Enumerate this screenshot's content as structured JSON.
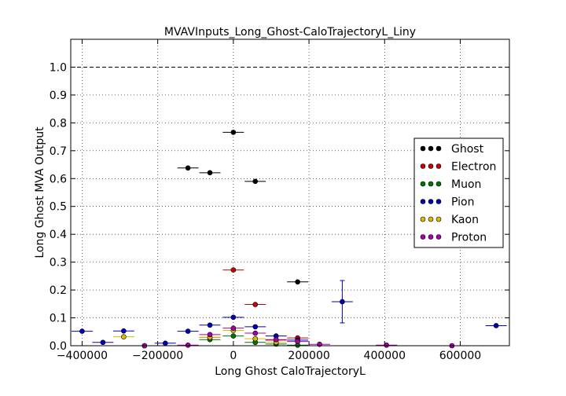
{
  "chart_data": {
    "type": "scatter",
    "title": "MVAVInputs_Long_Ghost-CaloTrajectoryL_Liny",
    "xlabel": "Long Ghost CaloTrajectoryL",
    "ylabel": "Long Ghost MVA Output",
    "xlim": [
      -430000,
      730000
    ],
    "ylim": [
      0.0,
      1.1
    ],
    "x_ticks": [
      -400000,
      -200000,
      0,
      200000,
      400000,
      600000
    ],
    "x_tick_labels": [
      "−400000",
      "−200000",
      "0",
      "200000",
      "400000",
      "600000"
    ],
    "y_ticks": [
      0.0,
      0.1,
      0.2,
      0.3,
      0.4,
      0.5,
      0.6,
      0.7,
      0.8,
      0.9,
      1.0
    ],
    "y_tick_labels": [
      "0.0",
      "0.1",
      "0.2",
      "0.3",
      "0.4",
      "0.5",
      "0.6",
      "0.7",
      "0.8",
      "0.9",
      "1.0"
    ],
    "grid": true,
    "reference_line_y": 1.0,
    "legend_position": "center-right",
    "series": [
      {
        "name": "Ghost",
        "color": "#000000",
        "points": [
          {
            "x": -120000,
            "y": 0.638,
            "xerr": 28000,
            "yerr": 0.003
          },
          {
            "x": -62000,
            "y": 0.621,
            "xerr": 28000,
            "yerr": 0.003
          },
          {
            "x": 0,
            "y": 0.766,
            "xerr": 28000,
            "yerr": 0.004
          },
          {
            "x": 58000,
            "y": 0.59,
            "xerr": 28000,
            "yerr": 0.004
          },
          {
            "x": 170000,
            "y": 0.229,
            "xerr": 28000,
            "yerr": 0.004
          }
        ]
      },
      {
        "name": "Electron",
        "color": "#cc0000",
        "points": [
          {
            "x": 0,
            "y": 0.272,
            "xerr": 28000,
            "yerr": 0.004
          },
          {
            "x": 58000,
            "y": 0.148,
            "xerr": 28000,
            "yerr": 0.004
          },
          {
            "x": -62000,
            "y": 0.03,
            "xerr": 28000,
            "yerr": 0.003
          },
          {
            "x": 113000,
            "y": 0.02,
            "xerr": 28000,
            "yerr": 0.003
          },
          {
            "x": 170000,
            "y": 0.028,
            "xerr": 28000,
            "yerr": 0.003
          }
        ]
      },
      {
        "name": "Muon",
        "color": "#007700",
        "points": [
          {
            "x": -62000,
            "y": 0.022,
            "xerr": 28000,
            "yerr": 0.003
          },
          {
            "x": 0,
            "y": 0.035,
            "xerr": 28000,
            "yerr": 0.003
          },
          {
            "x": 58000,
            "y": 0.012,
            "xerr": 28000,
            "yerr": 0.003
          },
          {
            "x": 113000,
            "y": 0.006,
            "xerr": 28000,
            "yerr": 0.003
          },
          {
            "x": 170000,
            "y": 0.002,
            "xerr": 28000,
            "yerr": 0.002
          }
        ]
      },
      {
        "name": "Pion",
        "color": "#0000bb",
        "points": [
          {
            "x": -400000,
            "y": 0.052,
            "xerr": 28000,
            "yerr": 0.004
          },
          {
            "x": -345000,
            "y": 0.012,
            "xerr": 28000,
            "yerr": 0.004
          },
          {
            "x": -290000,
            "y": 0.053,
            "xerr": 28000,
            "yerr": 0.006
          },
          {
            "x": -235000,
            "y": 0.0,
            "xerr": 28000,
            "yerr": 0.002
          },
          {
            "x": -180000,
            "y": 0.009,
            "xerr": 28000,
            "yerr": 0.003
          },
          {
            "x": -120000,
            "y": 0.052,
            "xerr": 28000,
            "yerr": 0.004
          },
          {
            "x": -62000,
            "y": 0.074,
            "xerr": 28000,
            "yerr": 0.004
          },
          {
            "x": 0,
            "y": 0.102,
            "xerr": 28000,
            "yerr": 0.004
          },
          {
            "x": 58000,
            "y": 0.068,
            "xerr": 28000,
            "yerr": 0.004
          },
          {
            "x": 113000,
            "y": 0.035,
            "xerr": 28000,
            "yerr": 0.004
          },
          {
            "x": 170000,
            "y": 0.02,
            "xerr": 28000,
            "yerr": 0.004
          },
          {
            "x": 288000,
            "y": 0.158,
            "xerr": 28000,
            "yerr": 0.076
          },
          {
            "x": 695000,
            "y": 0.072,
            "xerr": 28000,
            "yerr": 0.004
          }
        ]
      },
      {
        "name": "Kaon",
        "color": "#ddbb00",
        "points": [
          {
            "x": -290000,
            "y": 0.032,
            "xerr": 28000,
            "yerr": 0.006
          },
          {
            "x": -62000,
            "y": 0.03,
            "xerr": 28000,
            "yerr": 0.003
          },
          {
            "x": 0,
            "y": 0.055,
            "xerr": 28000,
            "yerr": 0.003
          },
          {
            "x": 58000,
            "y": 0.025,
            "xerr": 28000,
            "yerr": 0.003
          },
          {
            "x": 113000,
            "y": 0.012,
            "xerr": 28000,
            "yerr": 0.003
          }
        ]
      },
      {
        "name": "Proton",
        "color": "#aa00aa",
        "points": [
          {
            "x": -235000,
            "y": 0.0,
            "xerr": 28000,
            "yerr": 0.002
          },
          {
            "x": -120000,
            "y": 0.002,
            "xerr": 28000,
            "yerr": 0.002
          },
          {
            "x": -62000,
            "y": 0.04,
            "xerr": 28000,
            "yerr": 0.003
          },
          {
            "x": 0,
            "y": 0.063,
            "xerr": 28000,
            "yerr": 0.003
          },
          {
            "x": 58000,
            "y": 0.045,
            "xerr": 28000,
            "yerr": 0.003
          },
          {
            "x": 113000,
            "y": 0.022,
            "xerr": 28000,
            "yerr": 0.003
          },
          {
            "x": 170000,
            "y": 0.015,
            "xerr": 28000,
            "yerr": 0.003
          },
          {
            "x": 228000,
            "y": 0.005,
            "xerr": 28000,
            "yerr": 0.002
          },
          {
            "x": 405000,
            "y": 0.002,
            "xerr": 28000,
            "yerr": 0.002
          },
          {
            "x": 578000,
            "y": 0.0,
            "xerr": 28000,
            "yerr": 0.002
          }
        ]
      }
    ]
  }
}
